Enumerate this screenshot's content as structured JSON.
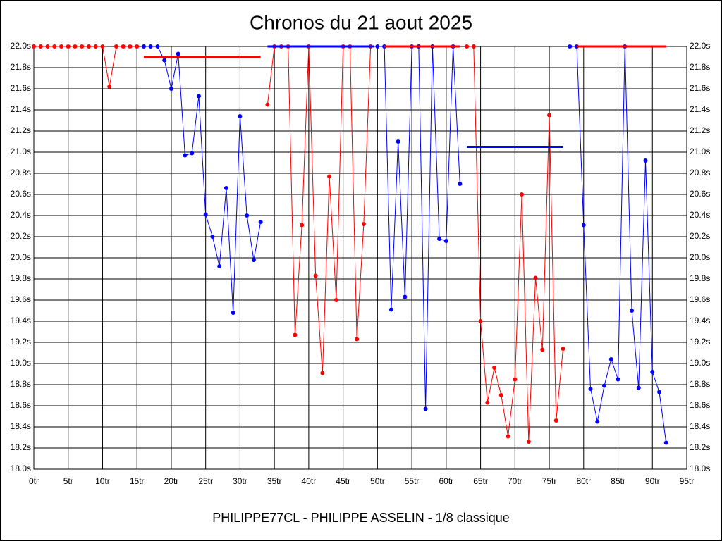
{
  "chart_data": {
    "type": "line",
    "title": "Chronos du 21 aout 2025",
    "x_label": "PHILIPPE77CL - PHILIPPE ASSELIN - 1/8 classique",
    "xlim": [
      0,
      95
    ],
    "ylim": [
      18.0,
      22.0
    ],
    "grid": true,
    "right_axis": true,
    "xticks": [
      {
        "value": 0,
        "label": "0tr"
      },
      {
        "value": 5,
        "label": "5tr"
      },
      {
        "value": 10,
        "label": "10tr"
      },
      {
        "value": 15,
        "label": "15tr"
      },
      {
        "value": 20,
        "label": "20tr"
      },
      {
        "value": 25,
        "label": "25tr"
      },
      {
        "value": 30,
        "label": "30tr"
      },
      {
        "value": 35,
        "label": "35tr"
      },
      {
        "value": 40,
        "label": "40tr"
      },
      {
        "value": 45,
        "label": "45tr"
      },
      {
        "value": 50,
        "label": "50tr"
      },
      {
        "value": 55,
        "label": "55tr"
      },
      {
        "value": 60,
        "label": "60tr"
      },
      {
        "value": 65,
        "label": "65tr"
      },
      {
        "value": 70,
        "label": "70tr"
      },
      {
        "value": 75,
        "label": "75tr"
      },
      {
        "value": 80,
        "label": "80tr"
      },
      {
        "value": 85,
        "label": "85tr"
      },
      {
        "value": 90,
        "label": "90tr"
      },
      {
        "value": 95,
        "label": "95tr"
      }
    ],
    "yticks": [
      {
        "value": 18.0,
        "label": "18.0s"
      },
      {
        "value": 18.2,
        "label": "18.2s"
      },
      {
        "value": 18.4,
        "label": "18.4s"
      },
      {
        "value": 18.6,
        "label": "18.6s"
      },
      {
        "value": 18.8,
        "label": "18.8s"
      },
      {
        "value": 19.0,
        "label": "19.0s"
      },
      {
        "value": 19.2,
        "label": "19.2s"
      },
      {
        "value": 19.4,
        "label": "19.4s"
      },
      {
        "value": 19.6,
        "label": "19.6s"
      },
      {
        "value": 19.8,
        "label": "19.8s"
      },
      {
        "value": 20.0,
        "label": "20.0s"
      },
      {
        "value": 20.2,
        "label": "20.2s"
      },
      {
        "value": 20.4,
        "label": "20.4s"
      },
      {
        "value": 20.6,
        "label": "20.6s"
      },
      {
        "value": 20.8,
        "label": "20.8s"
      },
      {
        "value": 21.0,
        "label": "21.0s"
      },
      {
        "value": 21.2,
        "label": "21.2s"
      },
      {
        "value": 21.4,
        "label": "21.4s"
      },
      {
        "value": 21.6,
        "label": "21.6s"
      },
      {
        "value": 21.8,
        "label": "21.8s"
      },
      {
        "value": 22.0,
        "label": "22.0s"
      }
    ],
    "series": [
      {
        "color": "#ff0000",
        "x": [
          0,
          1,
          2,
          3,
          4,
          5,
          6,
          7,
          8,
          9,
          10,
          11,
          12,
          13,
          14,
          15
        ],
        "values": [
          22.0,
          22.0,
          22.0,
          22.0,
          22.0,
          22.0,
          22.0,
          22.0,
          22.0,
          22.0,
          22.0,
          21.62,
          22.0,
          22.0,
          22.0,
          22.0
        ]
      },
      {
        "color": "#0000ff",
        "x": [
          16,
          17,
          18,
          19,
          20,
          21,
          22,
          23,
          24,
          25,
          26,
          27,
          28,
          29,
          30,
          31,
          32,
          33
        ],
        "values": [
          22.0,
          22.0,
          22.0,
          21.87,
          21.6,
          21.93,
          20.97,
          20.99,
          21.53,
          20.41,
          20.2,
          19.92,
          20.66,
          19.48,
          21.34,
          20.4,
          19.98,
          20.34
        ]
      },
      {
        "color": "#ff0000",
        "x": [
          34,
          35,
          36,
          37,
          38,
          39,
          40,
          41,
          42,
          43,
          44,
          45,
          46,
          47,
          48,
          49
        ],
        "values": [
          21.45,
          22.0,
          22.0,
          22.0,
          19.27,
          20.31,
          22.0,
          19.83,
          18.91,
          20.77,
          19.6,
          22.0,
          22.0,
          19.23,
          20.32,
          22.0
        ]
      },
      {
        "color": "#0000ff",
        "x": [
          50,
          51,
          52,
          53,
          54,
          55,
          56,
          57,
          58,
          59,
          60,
          61,
          62
        ],
        "values": [
          22.0,
          22.0,
          19.51,
          21.1,
          19.63,
          22.0,
          22.0,
          18.57,
          22.0,
          20.18,
          20.16,
          22.0,
          20.7
        ]
      },
      {
        "color": "#ff0000",
        "x": [
          63,
          64,
          65,
          66,
          67,
          68,
          69,
          70,
          71,
          72,
          73,
          74,
          75,
          76,
          77
        ],
        "values": [
          22.0,
          22.0,
          19.4,
          18.63,
          18.96,
          18.7,
          18.31,
          18.85,
          20.6,
          18.26,
          19.81,
          19.13,
          21.35,
          18.46,
          19.14
        ]
      },
      {
        "color": "#0000ff",
        "x": [
          78,
          79,
          80,
          81,
          82,
          83,
          84,
          85,
          86,
          87,
          88,
          89,
          90,
          91,
          92
        ],
        "values": [
          22.0,
          22.0,
          20.31,
          18.76,
          18.45,
          18.79,
          19.04,
          18.85,
          22.0,
          19.5,
          18.77,
          20.92,
          18.92,
          18.73,
          18.25
        ]
      }
    ],
    "reference_lines": [
      {
        "color": "#ff0000",
        "value": 21.9,
        "x": [
          16,
          33
        ]
      },
      {
        "color": "#0000ff",
        "value": 22.0,
        "x": [
          34,
          49.5
        ]
      },
      {
        "color": "#ff0000",
        "value": 22.0,
        "x": [
          51,
          62
        ]
      },
      {
        "color": "#0000ff",
        "value": 21.05,
        "x": [
          63,
          77
        ]
      },
      {
        "color": "#ff0000",
        "value": 22.0,
        "x": [
          79,
          92
        ]
      }
    ]
  }
}
